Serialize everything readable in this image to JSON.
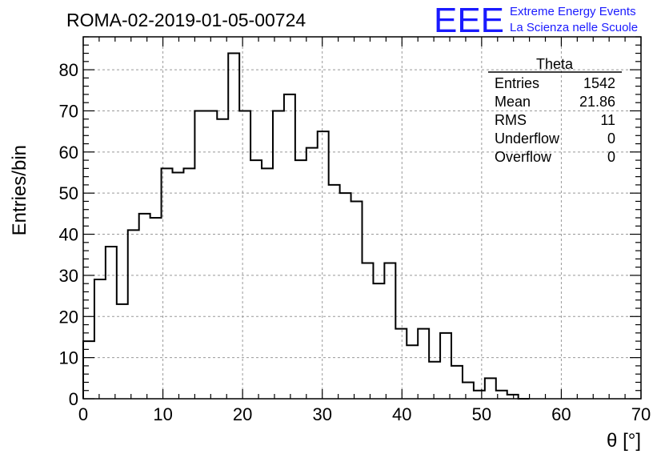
{
  "chart_data": {
    "type": "histogram",
    "title": "ROMA-02-2019-01-05-00724",
    "xlabel": "θ [°]",
    "ylabel": "Entries/bin",
    "xlim": [
      0,
      70
    ],
    "ylim": [
      0,
      88
    ],
    "x_ticks": [
      0,
      10,
      20,
      30,
      40,
      50,
      60,
      70
    ],
    "y_ticks": [
      0,
      10,
      20,
      30,
      40,
      50,
      60,
      70,
      80
    ],
    "grid": true,
    "bin_width": 1.4,
    "bin_start": 0,
    "values": [
      14,
      29,
      37,
      23,
      41,
      45,
      44,
      56,
      55,
      56,
      70,
      70,
      68,
      84,
      70,
      58,
      56,
      70,
      74,
      58,
      61,
      65,
      52,
      50,
      48,
      33,
      28,
      33,
      17,
      13,
      17,
      9,
      16,
      8,
      4,
      2,
      5,
      2,
      1,
      0
    ],
    "line_color": "#000000"
  },
  "stats_box": {
    "title": "Theta",
    "rows": [
      {
        "label": "Entries",
        "value": "1542"
      },
      {
        "label": "Mean",
        "value": "21.86"
      },
      {
        "label": "RMS",
        "value": "11"
      },
      {
        "label": "Underflow",
        "value": "0"
      },
      {
        "label": "Overflow",
        "value": "0"
      }
    ]
  },
  "logo": {
    "text": "EEE",
    "line1": "Extreme Energy Events",
    "line2": "La Scienza nelle Scuole",
    "color": "#1a1aff"
  }
}
